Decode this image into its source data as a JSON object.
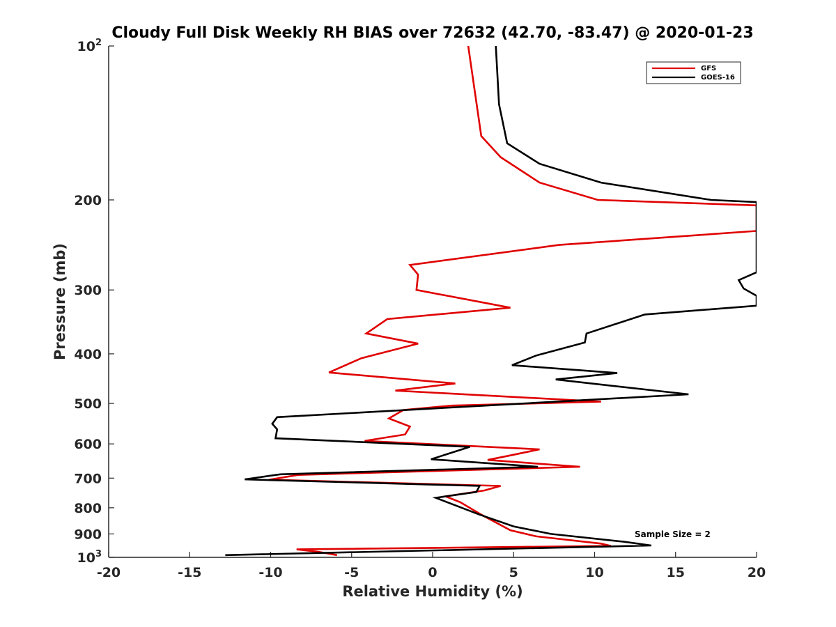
{
  "chart_data": {
    "type": "line",
    "title": "Cloudy Full Disk Weekly RH BIAS over 72632 (42.70, -83.47) @ 2020-01-23",
    "xlabel": "Relative Humidity (%)",
    "ylabel": "Pressure (mb)",
    "xlim": [
      -20,
      20
    ],
    "ylim": [
      100,
      1000
    ],
    "y_scale": "log",
    "y_reversed": true,
    "grid": false,
    "legend_position": "top-right",
    "annotation": "Sample Size = 2",
    "x_ticks": [
      "-20",
      "-15",
      "-10",
      "-5",
      "0",
      "5",
      "10",
      "15",
      "20"
    ],
    "y_ticks": [
      {
        "base": "10",
        "exp": "2"
      },
      {
        "base": "200",
        "exp": ""
      },
      {
        "base": "300",
        "exp": ""
      },
      {
        "base": "400",
        "exp": ""
      },
      {
        "base": "500",
        "exp": ""
      },
      {
        "base": "600",
        "exp": ""
      },
      {
        "base": "700",
        "exp": ""
      },
      {
        "base": "800",
        "exp": ""
      },
      {
        "base": "900",
        "exp": ""
      },
      {
        "base": "10",
        "exp": "3"
      }
    ],
    "series": [
      {
        "name": "GFS",
        "color": "#e00000",
        "points": [
          [
            2.2,
            100
          ],
          [
            3.0,
            150
          ],
          [
            4.2,
            165
          ],
          [
            6.6,
            185
          ],
          [
            10.2,
            200
          ],
          [
            20,
            205
          ],
          [
            20,
            230
          ],
          [
            7.8,
            245
          ],
          [
            -1.4,
            268
          ],
          [
            -0.9,
            280
          ],
          [
            -1.0,
            300
          ],
          [
            4.8,
            325
          ],
          [
            -2.8,
            342
          ],
          [
            -4.1,
            365
          ],
          [
            -0.9,
            382
          ],
          [
            -4.4,
            408
          ],
          [
            -6.4,
            435
          ],
          [
            1.4,
            457
          ],
          [
            -2.3,
            472
          ],
          [
            10.4,
            496
          ],
          [
            1.2,
            505
          ],
          [
            -1.8,
            515
          ],
          [
            -2.7,
            535
          ],
          [
            -1.4,
            555
          ],
          [
            -1.7,
            575
          ],
          [
            -4.2,
            592
          ],
          [
            6.6,
            615
          ],
          [
            4.8,
            632
          ],
          [
            3.4,
            645
          ],
          [
            9.1,
            665
          ],
          [
            -8.3,
            690
          ],
          [
            -10.1,
            705
          ],
          [
            4.2,
            725
          ],
          [
            3.2,
            740
          ],
          [
            0.8,
            760
          ],
          [
            1.7,
            780
          ],
          [
            3.0,
            825
          ],
          [
            4.8,
            885
          ],
          [
            6.4,
            910
          ],
          [
            10.4,
            940
          ],
          [
            11.0,
            950
          ],
          [
            -8.4,
            965
          ],
          [
            -7.1,
            975
          ],
          [
            -5.9,
            990
          ]
        ]
      },
      {
        "name": "GOES-16",
        "color": "#000000",
        "points": [
          [
            3.9,
            100
          ],
          [
            4.1,
            130
          ],
          [
            4.6,
            155
          ],
          [
            6.6,
            170
          ],
          [
            10.4,
            185
          ],
          [
            17.2,
            200
          ],
          [
            20,
            202
          ],
          [
            20,
            277
          ],
          [
            18.9,
            287
          ],
          [
            19.2,
            298
          ],
          [
            20,
            308
          ],
          [
            20,
            322
          ],
          [
            13.1,
            335
          ],
          [
            9.5,
            365
          ],
          [
            9.4,
            380
          ],
          [
            6.4,
            403
          ],
          [
            4.9,
            421
          ],
          [
            11.4,
            436
          ],
          [
            7.6,
            449
          ],
          [
            15.8,
            480
          ],
          [
            -9.6,
            532
          ],
          [
            -9.9,
            548
          ],
          [
            -9.6,
            562
          ],
          [
            -9.7,
            585
          ],
          [
            2.3,
            608
          ],
          [
            -0.1,
            643
          ],
          [
            6.5,
            665
          ],
          [
            -9.4,
            688
          ],
          [
            -11.6,
            704
          ],
          [
            2.9,
            725
          ],
          [
            2.7,
            745
          ],
          [
            0.2,
            765
          ],
          [
            2.9,
            825
          ],
          [
            5.0,
            870
          ],
          [
            7.3,
            900
          ],
          [
            11.8,
            932
          ],
          [
            13.5,
            948
          ],
          [
            -12.8,
            990
          ]
        ]
      }
    ]
  }
}
